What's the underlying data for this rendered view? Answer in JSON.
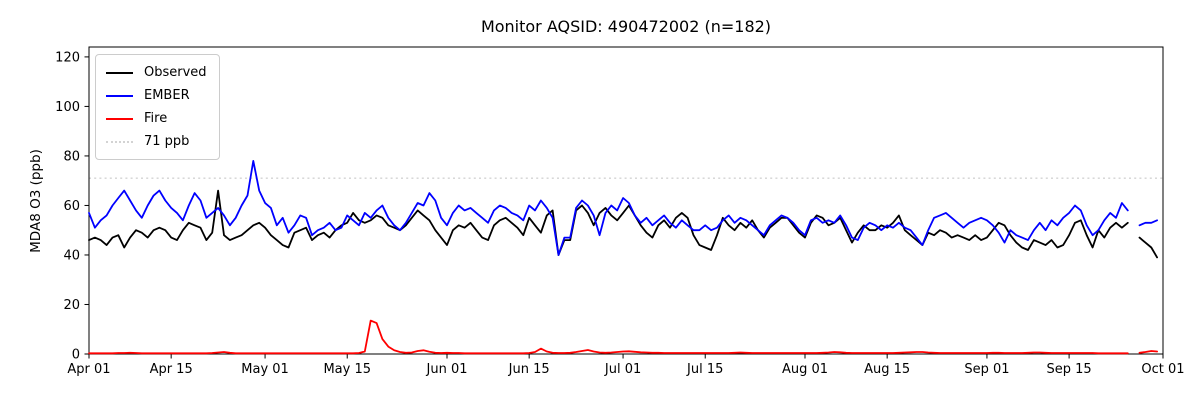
{
  "chart_data": {
    "type": "line",
    "title": "Monitor AQSID: 490472002 (n=182)",
    "xlabel": "",
    "ylabel": "MDA8 O3 (ppb)",
    "ylim": [
      0,
      124
    ],
    "x_range_days": 183,
    "x_start_label": "Apr 01",
    "x_tick_labels": [
      "Apr 01",
      "Apr 15",
      "May 01",
      "May 15",
      "Jun 01",
      "Jun 15",
      "Jul 01",
      "Jul 15",
      "Aug 01",
      "Aug 15",
      "Sep 01",
      "Sep 15",
      "Oct 01"
    ],
    "x_tick_days": [
      0,
      14,
      30,
      44,
      61,
      75,
      91,
      105,
      122,
      136,
      153,
      167,
      183
    ],
    "y_ticks": [
      0,
      20,
      40,
      60,
      80,
      100,
      120
    ],
    "grid": false,
    "threshold": {
      "label": "71 ppb",
      "value": 71,
      "color": "#d3d3d3",
      "style": "dotted"
    },
    "missing_day_index": 178,
    "series": [
      {
        "name": "Observed",
        "color": "#000000",
        "style": "solid",
        "values": [
          46,
          47,
          46,
          44,
          47,
          48,
          43,
          47,
          50,
          49,
          47,
          50,
          51,
          50,
          47,
          46,
          50,
          53,
          52,
          51,
          46,
          49,
          66,
          48,
          46,
          47,
          48,
          50,
          52,
          53,
          51,
          48,
          46,
          44,
          43,
          49,
          50,
          51,
          46,
          48,
          49,
          47,
          50,
          52,
          53,
          57,
          54,
          53,
          54,
          56,
          55,
          52,
          51,
          50,
          52,
          55,
          58,
          56,
          54,
          50,
          47,
          44,
          50,
          52,
          51,
          53,
          50,
          47,
          46,
          52,
          54,
          55,
          53,
          51,
          48,
          55,
          52,
          49,
          56,
          58,
          40,
          46,
          46,
          58,
          60,
          57,
          52,
          57,
          59,
          56,
          54,
          57,
          60,
          56,
          52,
          49,
          47,
          52,
          54,
          51,
          55,
          57,
          55,
          48,
          44,
          43,
          42,
          48,
          55,
          52,
          50,
          53,
          51,
          54,
          50,
          47,
          51,
          53,
          55,
          55,
          52,
          49,
          47,
          53,
          56,
          55,
          52,
          53,
          55,
          50,
          45,
          49,
          52,
          50,
          50,
          52,
          51,
          53,
          56,
          50,
          48,
          46,
          44,
          49,
          48,
          50,
          49,
          47,
          48,
          47,
          46,
          48,
          46,
          47,
          50,
          53,
          52,
          48,
          45,
          43,
          42,
          46,
          45,
          44,
          46,
          43,
          44,
          48,
          53,
          54,
          48,
          43,
          50,
          47,
          51,
          53,
          51,
          53,
          null,
          47,
          45,
          43,
          39
        ]
      },
      {
        "name": "EMBER",
        "color": "#0000ff",
        "style": "solid",
        "values": [
          57,
          51,
          54,
          56,
          60,
          63,
          66,
          62,
          58,
          55,
          60,
          64,
          66,
          62,
          59,
          57,
          54,
          60,
          65,
          62,
          55,
          57,
          59,
          56,
          52,
          55,
          60,
          64,
          78,
          66,
          61,
          59,
          52,
          55,
          49,
          52,
          56,
          55,
          48,
          50,
          51,
          53,
          50,
          51,
          56,
          54,
          52,
          57,
          55,
          58,
          60,
          55,
          52,
          50,
          53,
          57,
          61,
          60,
          65,
          62,
          55,
          52,
          57,
          60,
          58,
          59,
          57,
          55,
          53,
          58,
          60,
          59,
          57,
          56,
          54,
          60,
          58,
          62,
          59,
          55,
          40,
          47,
          47,
          59,
          62,
          60,
          56,
          48,
          57,
          60,
          58,
          63,
          61,
          56,
          53,
          55,
          52,
          54,
          56,
          53,
          51,
          54,
          52,
          50,
          50,
          52,
          50,
          51,
          54,
          56,
          53,
          55,
          54,
          52,
          50,
          48,
          52,
          54,
          56,
          55,
          53,
          50,
          48,
          54,
          55,
          53,
          54,
          53,
          56,
          52,
          47,
          46,
          51,
          53,
          52,
          50,
          52,
          51,
          53,
          51,
          50,
          47,
          44,
          50,
          55,
          56,
          57,
          55,
          53,
          51,
          53,
          54,
          55,
          54,
          52,
          49,
          45,
          50,
          48,
          47,
          46,
          50,
          53,
          50,
          54,
          52,
          55,
          57,
          60,
          58,
          52,
          48,
          50,
          54,
          57,
          55,
          61,
          58,
          null,
          52,
          53,
          53,
          54
        ]
      },
      {
        "name": "Fire",
        "color": "#ff0000",
        "style": "solid",
        "values": [
          0.3,
          0.3,
          0.3,
          0.3,
          0.3,
          0.4,
          0.4,
          0.5,
          0.4,
          0.3,
          0.3,
          0.3,
          0.3,
          0.3,
          0.3,
          0.3,
          0.3,
          0.3,
          0.3,
          0.3,
          0.3,
          0.4,
          0.6,
          0.8,
          0.5,
          0.3,
          0.3,
          0.3,
          0.3,
          0.3,
          0.3,
          0.3,
          0.3,
          0.3,
          0.3,
          0.3,
          0.3,
          0.3,
          0.3,
          0.3,
          0.3,
          0.3,
          0.3,
          0.3,
          0.3,
          0.3,
          0.4,
          1.0,
          13.5,
          12.5,
          6.0,
          3.0,
          1.5,
          0.8,
          0.5,
          0.6,
          1.2,
          1.5,
          0.9,
          0.5,
          0.4,
          0.5,
          0.4,
          0.4,
          0.3,
          0.3,
          0.3,
          0.3,
          0.3,
          0.3,
          0.3,
          0.3,
          0.3,
          0.3,
          0.3,
          0.4,
          0.8,
          2.2,
          1.0,
          0.5,
          0.4,
          0.4,
          0.5,
          0.8,
          1.2,
          1.6,
          1.0,
          0.6,
          0.5,
          0.6,
          0.8,
          1.0,
          1.1,
          0.9,
          0.7,
          0.6,
          0.5,
          0.5,
          0.4,
          0.4,
          0.4,
          0.4,
          0.4,
          0.4,
          0.4,
          0.4,
          0.4,
          0.4,
          0.4,
          0.4,
          0.5,
          0.6,
          0.5,
          0.4,
          0.4,
          0.4,
          0.4,
          0.4,
          0.4,
          0.4,
          0.4,
          0.4,
          0.4,
          0.4,
          0.4,
          0.5,
          0.6,
          0.8,
          0.7,
          0.5,
          0.4,
          0.4,
          0.4,
          0.4,
          0.4,
          0.4,
          0.4,
          0.4,
          0.5,
          0.6,
          0.7,
          0.8,
          0.8,
          0.6,
          0.5,
          0.4,
          0.4,
          0.4,
          0.4,
          0.4,
          0.4,
          0.4,
          0.4,
          0.4,
          0.5,
          0.5,
          0.4,
          0.4,
          0.4,
          0.4,
          0.5,
          0.6,
          0.6,
          0.5,
          0.4,
          0.4,
          0.4,
          0.4,
          0.4,
          0.4,
          0.4,
          0.4,
          0.3,
          0.3,
          0.3,
          0.3,
          0.3,
          0.3,
          null,
          0.5,
          0.8,
          1.2,
          1.0
        ]
      }
    ],
    "legend": {
      "position": "upper left",
      "items": [
        {
          "label": "Observed",
          "color": "#000000",
          "style": "solid"
        },
        {
          "label": "EMBER",
          "color": "#0000ff",
          "style": "solid"
        },
        {
          "label": "Fire",
          "color": "#ff0000",
          "style": "solid"
        },
        {
          "label": "71 ppb",
          "color": "#d3d3d3",
          "style": "dotted"
        }
      ]
    },
    "colors": {
      "axes": "#000000",
      "background": "#ffffff",
      "threshold": "#d3d3d3"
    }
  }
}
